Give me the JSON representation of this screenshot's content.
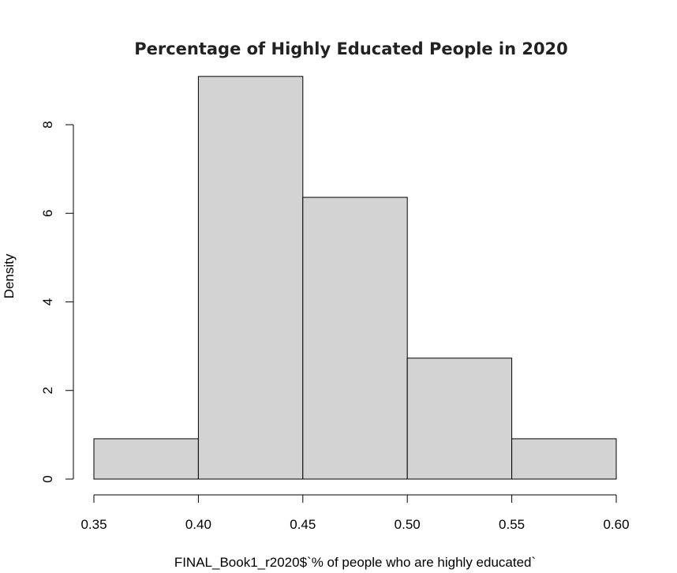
{
  "chart_data": {
    "type": "bar",
    "subtype": "histogram",
    "title": "Percentage of Highly Educated People in 2020",
    "xlabel": "FINAL_Book1_r2020$`% of people who are highly educated`",
    "ylabel": "Density",
    "bins": [
      {
        "start": 0.35,
        "end": 0.4,
        "density": 0.91
      },
      {
        "start": 0.4,
        "end": 0.45,
        "density": 9.09
      },
      {
        "start": 0.45,
        "end": 0.5,
        "density": 6.36
      },
      {
        "start": 0.5,
        "end": 0.55,
        "density": 2.73
      },
      {
        "start": 0.55,
        "end": 0.6,
        "density": 0.91
      }
    ],
    "xlim": [
      0.35,
      0.6
    ],
    "ylim": [
      0,
      9.09
    ],
    "x_ticks": [
      "0.35",
      "0.40",
      "0.45",
      "0.50",
      "0.55",
      "0.60"
    ],
    "y_ticks": [
      "0",
      "2",
      "4",
      "6",
      "8"
    ],
    "grid": false,
    "legend": "none",
    "colors": {
      "bar_fill": "#d3d3d3",
      "bar_stroke": "#000000"
    }
  }
}
